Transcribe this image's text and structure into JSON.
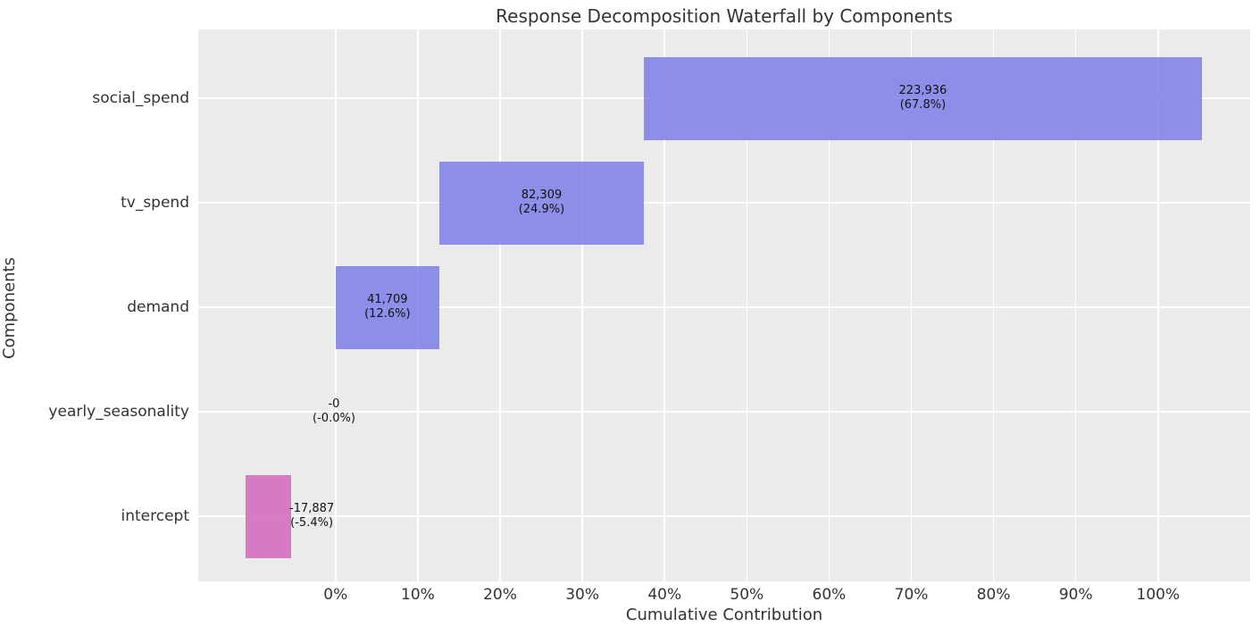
{
  "chart_data": {
    "type": "bar",
    "subtype": "waterfall",
    "orientation": "horizontal",
    "title": "Response Decomposition Waterfall by Components",
    "xlabel": "Cumulative Contribution",
    "ylabel": "Components",
    "grid": true,
    "legend": false,
    "plot_bg_color": "#ebebeb",
    "grid_color": "#ffffff",
    "positive_bar_color_solid": "#8c8de9",
    "negative_bar_color_solid": "#d67cc1",
    "positive_bar_color": "rgba(124,126,230,0.85)",
    "negative_bar_color": "rgba(212,102,188,0.85)",
    "xlim_pct": [
      -16.7,
      111.2
    ],
    "categories": [
      "social_spend",
      "tv_spend",
      "demand",
      "yearly_seasonality",
      "intercept"
    ],
    "series": [
      {
        "name": "social_spend",
        "value": 223936,
        "value_label": "223,936",
        "pct_label": "(67.8%)",
        "pct": 67.8,
        "start_pct": 37.5,
        "end_pct": 105.3,
        "label_center_pct": 71.4,
        "positive": true
      },
      {
        "name": "tv_spend",
        "value": 82309,
        "value_label": "82,309",
        "pct_label": "(24.9%)",
        "pct": 24.9,
        "start_pct": 12.6,
        "end_pct": 37.5,
        "label_center_pct": 25.05,
        "positive": true
      },
      {
        "name": "demand",
        "value": 41709,
        "value_label": "41,709",
        "pct_label": "(12.6%)",
        "pct": 12.6,
        "start_pct": 0.0,
        "end_pct": 12.6,
        "label_center_pct": 6.3,
        "positive": true
      },
      {
        "name": "yearly_seasonality",
        "value": 0,
        "value_label": "-0",
        "pct_label": "(-0.0%)",
        "pct": -0.0,
        "start_pct": 0.0,
        "end_pct": 0.0,
        "label_center_pct": -0.2,
        "positive": false
      },
      {
        "name": "intercept",
        "value": -17887,
        "value_label": "-17,887",
        "pct_label": "(-5.4%)",
        "pct": -5.4,
        "start_pct": -10.9,
        "end_pct": -5.4,
        "label_center_pct": -2.9,
        "positive": false
      }
    ],
    "x_ticks": [
      {
        "pct": 0,
        "label": "0%"
      },
      {
        "pct": 10,
        "label": "10%"
      },
      {
        "pct": 20,
        "label": "20%"
      },
      {
        "pct": 30,
        "label": "30%"
      },
      {
        "pct": 40,
        "label": "40%"
      },
      {
        "pct": 50,
        "label": "50%"
      },
      {
        "pct": 60,
        "label": "60%"
      },
      {
        "pct": 70,
        "label": "70%"
      },
      {
        "pct": 80,
        "label": "80%"
      },
      {
        "pct": 90,
        "label": "90%"
      },
      {
        "pct": 100,
        "label": "100%"
      }
    ]
  }
}
